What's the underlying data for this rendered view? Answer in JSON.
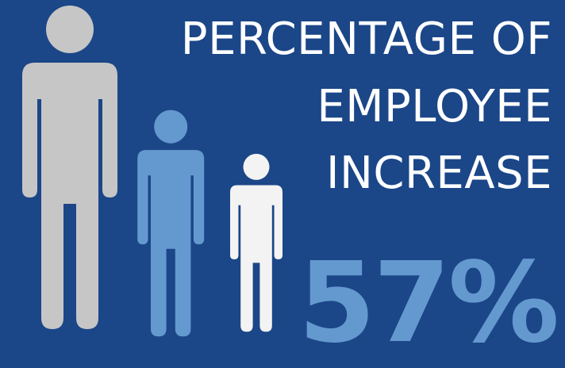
{
  "title": {
    "line1": "PERCENTAGE OF",
    "line2": "EMPLOYEE",
    "line3": "INCREASE"
  },
  "stat": {
    "value": "57%",
    "color": "#6499cf"
  },
  "colors": {
    "background": "#1b4688",
    "figure_large": "#c6c6c6",
    "figure_medium": "#6499cf",
    "figure_small": "#f3f3f3"
  },
  "figures": [
    {
      "name": "large-person-icon",
      "icon": "person-icon"
    },
    {
      "name": "medium-person-icon",
      "icon": "person-icon"
    },
    {
      "name": "small-person-icon",
      "icon": "person-icon"
    }
  ]
}
